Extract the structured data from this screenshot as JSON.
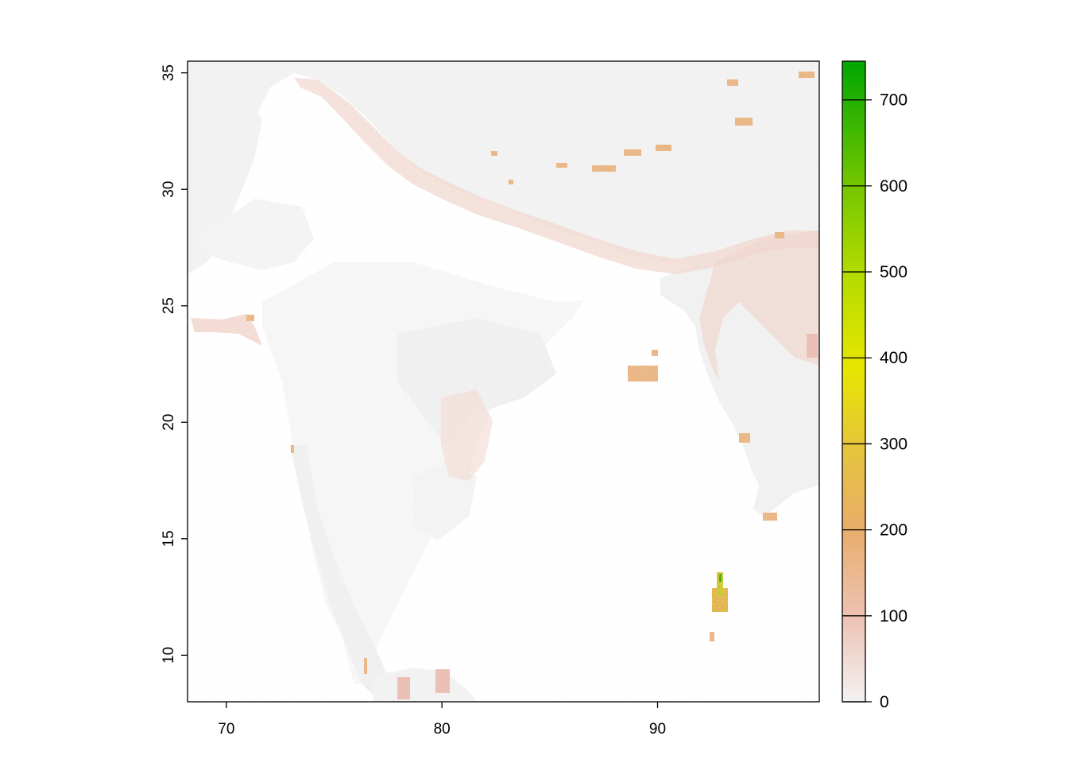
{
  "chart_data": {
    "type": "heatmap",
    "title": "",
    "xlabel": "",
    "ylabel": "",
    "xlim": [
      68.2,
      97.5
    ],
    "ylim": [
      8.0,
      35.5
    ],
    "x_ticks": [
      {
        "value": 70,
        "label": "70"
      },
      {
        "value": 80,
        "label": "80"
      },
      {
        "value": 90,
        "label": "90"
      }
    ],
    "y_ticks": [
      {
        "value": 10,
        "label": "10"
      },
      {
        "value": 15,
        "label": "15"
      },
      {
        "value": 20,
        "label": "20"
      },
      {
        "value": 25,
        "label": "25"
      },
      {
        "value": 30,
        "label": "30"
      },
      {
        "value": 35,
        "label": "35"
      }
    ],
    "colorbar": {
      "min": 0,
      "max": 745,
      "ticks": [
        {
          "value": 0,
          "label": "0"
        },
        {
          "value": 100,
          "label": "100"
        },
        {
          "value": 200,
          "label": "200"
        },
        {
          "value": 300,
          "label": "300"
        },
        {
          "value": 400,
          "label": "400"
        },
        {
          "value": 500,
          "label": "500"
        },
        {
          "value": 600,
          "label": "600"
        },
        {
          "value": 700,
          "label": "700"
        }
      ],
      "colors": [
        "#f2f2f2",
        "#eec2b3",
        "#e8ad6b",
        "#e6c53a",
        "#e6e600",
        "#b3db00",
        "#6cc400",
        "#00a600"
      ]
    },
    "colors": {
      "land_low": "#f2f2f2",
      "value_low": "#eec8bb",
      "value_mid": "#e8b07a",
      "value_high": "#d9bb2e",
      "value_peak": "#3aa600"
    }
  }
}
